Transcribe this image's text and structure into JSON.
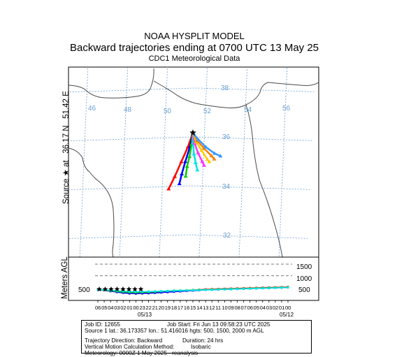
{
  "header": {
    "model": "NOAA HYSPLIT MODEL",
    "title": "Backward trajectories ending at 0700 UTC 13 May 25",
    "subtitle": "CDC1 Meteorological Data"
  },
  "map": {
    "source_label": "Source ★ at   36.17 N   51.42 E",
    "lon_labels": [
      "46",
      "48",
      "50",
      "52",
      "54",
      "56"
    ],
    "lat_labels": [
      "38",
      "36",
      "34",
      "32"
    ]
  },
  "height_panel": {
    "ylabel": "Meters AGL",
    "level_labels": [
      "1500",
      "1000",
      "500"
    ],
    "left_label": "500",
    "time_ticks": [
      "06",
      "05",
      "04",
      "03",
      "02",
      "01",
      "00",
      "23",
      "22",
      "21",
      "20",
      "19",
      "18",
      "17",
      "16",
      "15",
      "14",
      "13",
      "12",
      "11",
      "10",
      "09",
      "08",
      "07",
      "06",
      "05",
      "04",
      "03",
      "02",
      "01",
      "00"
    ],
    "date_left": "05/13",
    "date_right": "05/12"
  },
  "info": {
    "job_id": "Job ID: 12655",
    "job_start": "Job Start: Fri Jun 13 09:58:23 UTC 2025",
    "source_line": "Source 1 lat.: 36.173357    lon.: 51.416016   hgts: 500, 1500, 2000 m AGL",
    "direction": "Trajectory Direction: Backward",
    "duration": "Duration: 24 hrs",
    "vertical": "Vertical Motion Calculation Method:",
    "vertical_value": "Isobaric",
    "meteorology": "Meteorology: 0000Z 1 May 2025 - reanalysis"
  },
  "colors": {
    "grid": "#6a9fd0",
    "coast": "#5b8fd0",
    "series": [
      "#ff0000",
      "#0000ff",
      "#00cc00",
      "#00e5e5",
      "#ff33ff",
      "#ffcc00",
      "#ff7f00",
      "#3399ff",
      "#7f00ff",
      "#66ff66",
      "#ff6666",
      "#00b3b3",
      "#999999",
      "#000000"
    ]
  },
  "chart_data": {
    "type": "line",
    "source": {
      "lat": 36.17,
      "lon": 51.42
    },
    "axes": {
      "lon_range": [
        45.5,
        57.0
      ],
      "lat_range": [
        30.8,
        39.2
      ],
      "height_range": [
        0,
        2000
      ]
    },
    "series": [
      {
        "lons": [
          51.42,
          51.2,
          50.9,
          50.6,
          50.32
        ],
        "lats": [
          36.17,
          35.6,
          35.0,
          34.4,
          33.9
        ]
      },
      {
        "lons": [
          51.42,
          51.3,
          51.1,
          50.95,
          50.85
        ],
        "lats": [
          36.17,
          35.6,
          35.0,
          34.5,
          34.1
        ]
      },
      {
        "lons": [
          51.42,
          51.38,
          51.3,
          51.2,
          51.15
        ],
        "lats": [
          36.17,
          35.7,
          35.2,
          34.8,
          34.4
        ]
      },
      {
        "lons": [
          51.42,
          51.45,
          51.52,
          51.62,
          51.72
        ],
        "lats": [
          36.17,
          35.75,
          35.3,
          34.95,
          34.65
        ]
      },
      {
        "lons": [
          51.42,
          51.52,
          51.72,
          51.95,
          52.05
        ],
        "lats": [
          36.17,
          35.75,
          35.35,
          35.0,
          34.85
        ]
      },
      {
        "lons": [
          51.42,
          51.6,
          51.9,
          52.2,
          52.3
        ],
        "lats": [
          36.17,
          35.8,
          35.45,
          35.1,
          35.0
        ]
      },
      {
        "lons": [
          51.42,
          51.65,
          52.0,
          52.4,
          52.55
        ],
        "lats": [
          36.17,
          35.85,
          35.55,
          35.25,
          35.12
        ]
      },
      {
        "lons": [
          51.42,
          51.7,
          52.1,
          52.55,
          52.85
        ],
        "lats": [
          36.17,
          35.9,
          35.6,
          35.35,
          35.25
        ]
      }
    ],
    "heights": [
      [
        500,
        470,
        430,
        380,
        350,
        330,
        320,
        330,
        340,
        360,
        380,
        400,
        420,
        440,
        460,
        480,
        500,
        520,
        530,
        540,
        550,
        560,
        570,
        580,
        590,
        600,
        610,
        620,
        630,
        640,
        650
      ],
      [
        500,
        470,
        420,
        370,
        330,
        300,
        290,
        300,
        310,
        330,
        350,
        370,
        390,
        410,
        430,
        450,
        470,
        490,
        500,
        510,
        520,
        530,
        540,
        550,
        560,
        570,
        580,
        590,
        600,
        610,
        620
      ],
      [
        500,
        480,
        450,
        410,
        380,
        360,
        350,
        360,
        370,
        390,
        410,
        430,
        450,
        460,
        470,
        480,
        490,
        500,
        510,
        520,
        530,
        540,
        550,
        560,
        570,
        580,
        590,
        600,
        610,
        620,
        630
      ],
      [
        500,
        490,
        470,
        440,
        420,
        400,
        390,
        390,
        400,
        410,
        420,
        430,
        440,
        450,
        460,
        470,
        480,
        490,
        500,
        510,
        520,
        530,
        540,
        550,
        560,
        570,
        580,
        590,
        600,
        610,
        620
      ]
    ]
  }
}
